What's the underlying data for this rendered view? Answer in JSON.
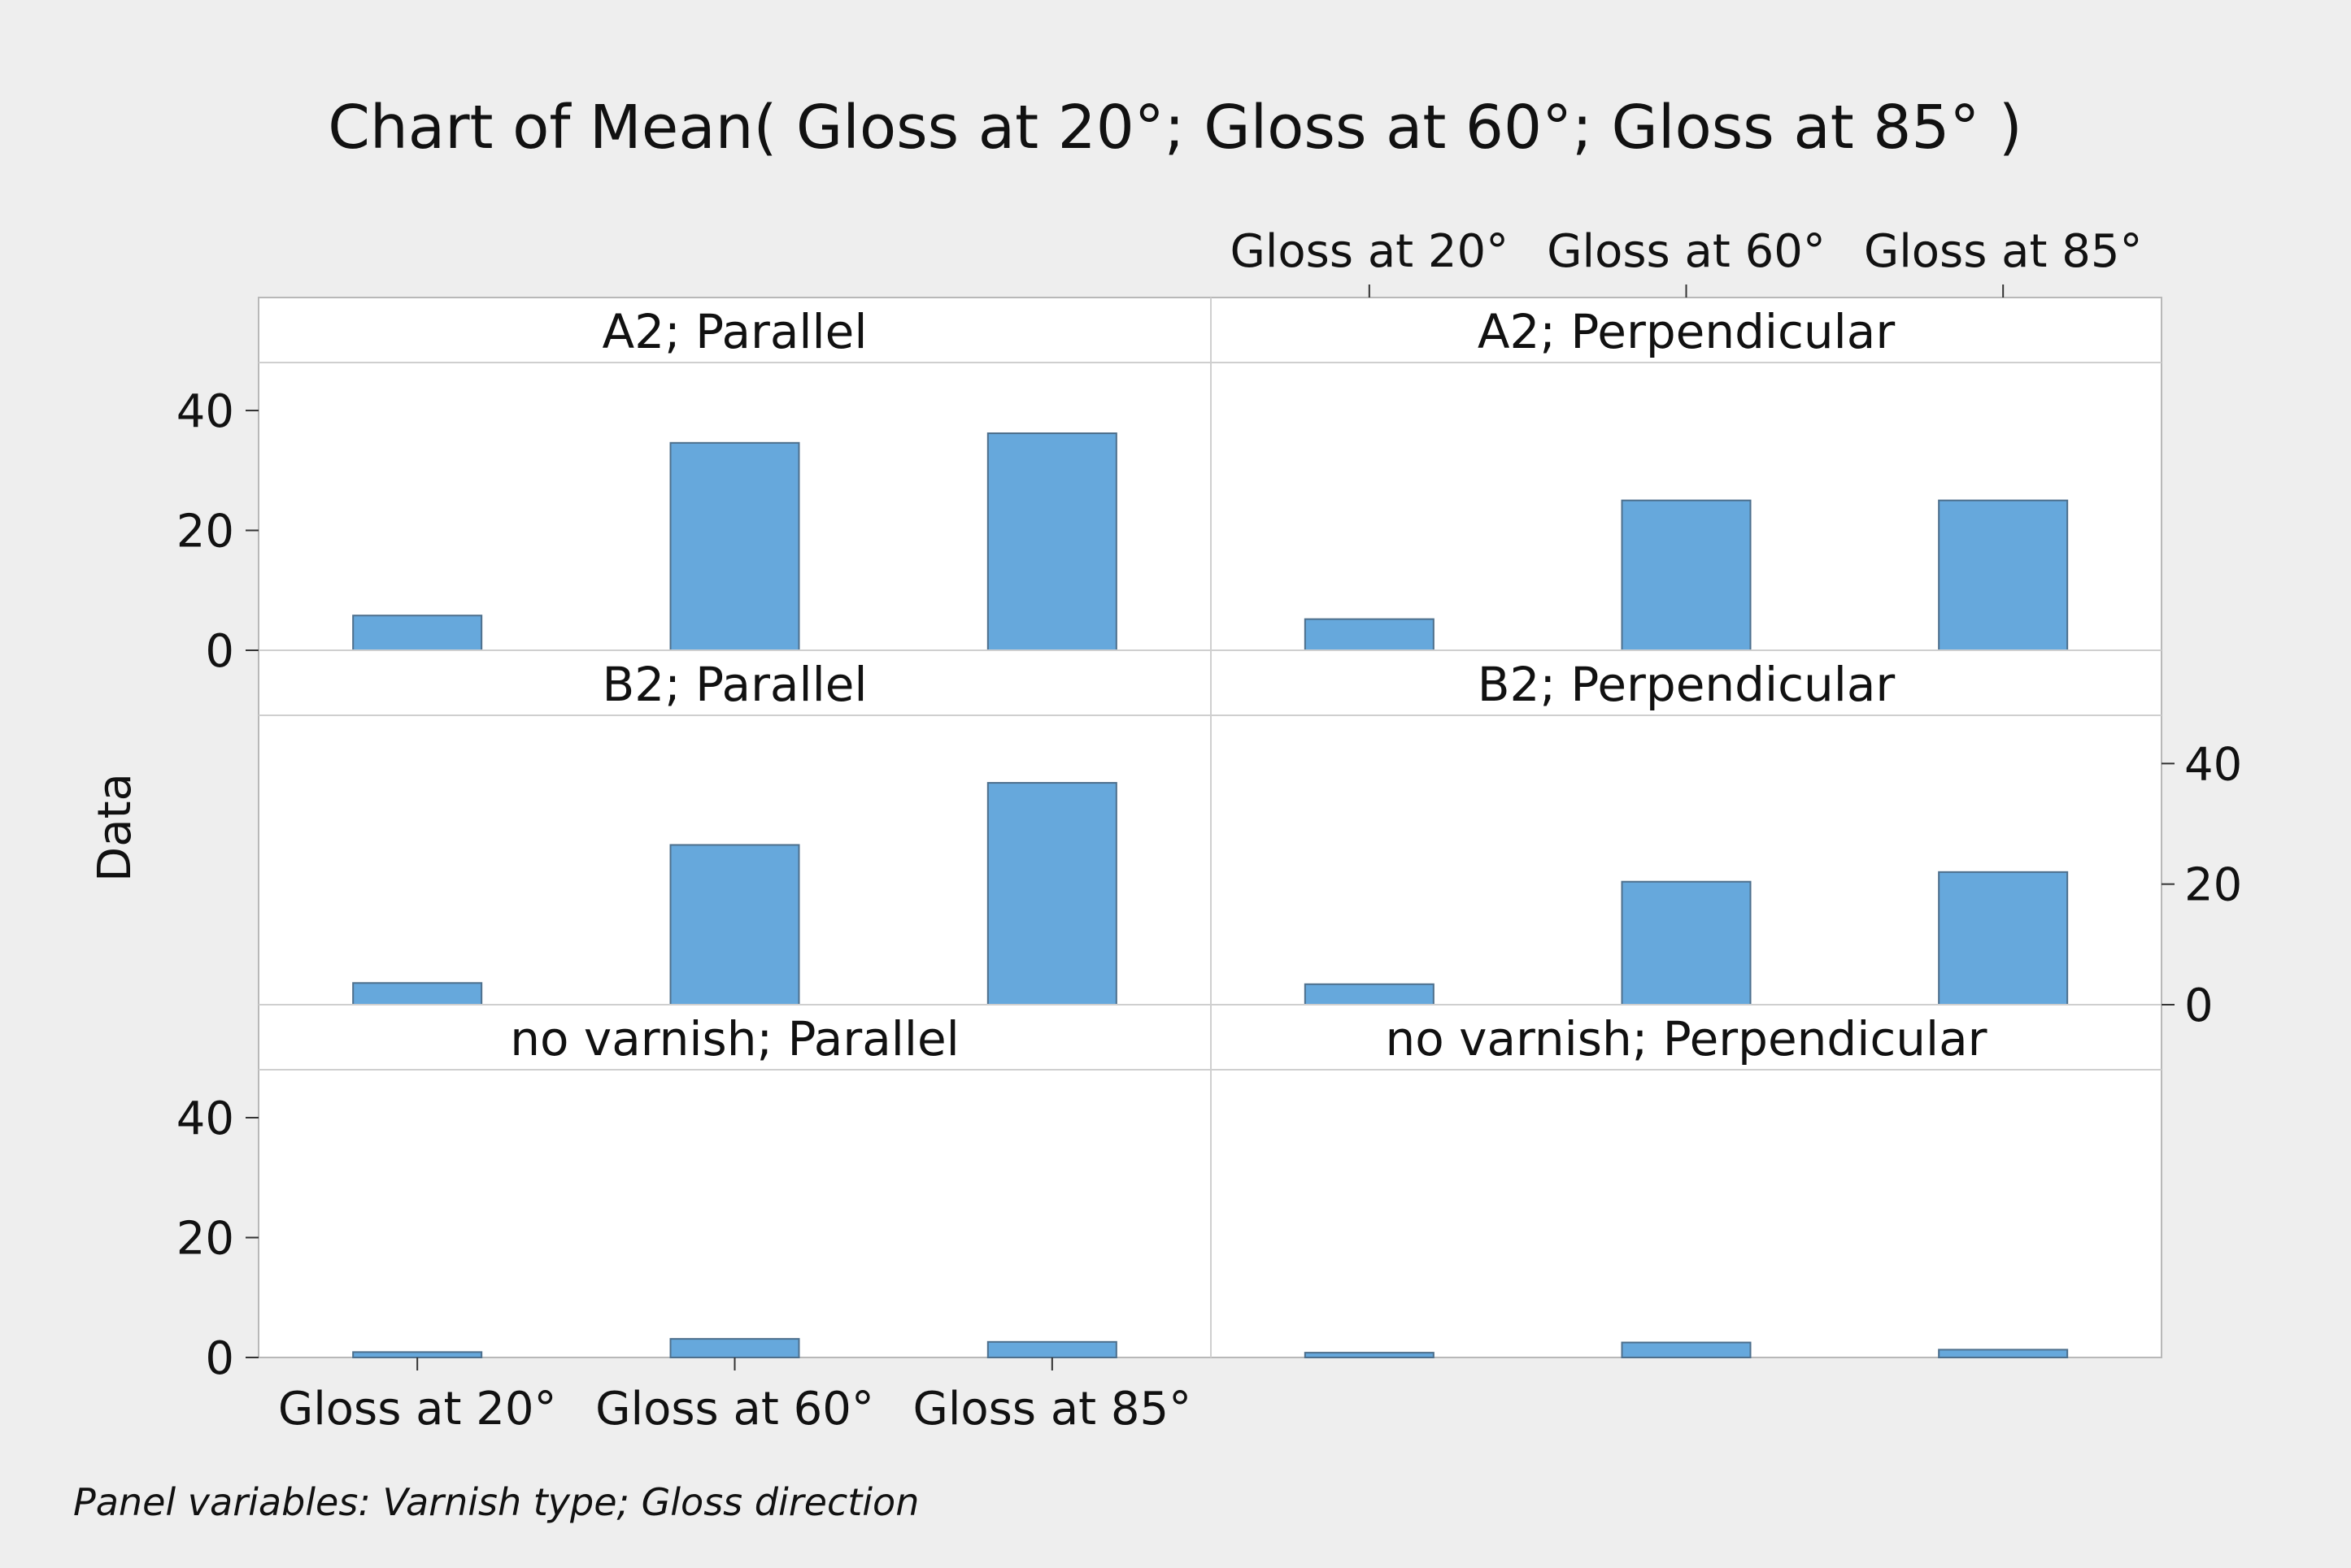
{
  "chart_data": {
    "type": "bar",
    "title": "Chart of Mean( Gloss at 20°; Gloss at 60°; Gloss at 85° )",
    "ylabel": "Data",
    "xlabel": "",
    "ylim": [
      0,
      48
    ],
    "y_ticks": [
      "0",
      "20",
      "40"
    ],
    "categories": [
      "Gloss at 20°",
      "Gloss at 60°",
      "Gloss at 85°"
    ],
    "footnote": "Panel variables: Varnish type; Gloss direction",
    "colors": {
      "bar": "#66a8dc",
      "bar_edge": "#4d6f8c",
      "background": "#eeeeee",
      "panel": "#ffffff",
      "grid": "#cfcfcf"
    },
    "panels": [
      {
        "label": "A2; Parallel",
        "values": [
          5.8,
          34.6,
          36.2
        ]
      },
      {
        "label": "A2; Perpendicular",
        "values": [
          5.2,
          25.0,
          25.0
        ]
      },
      {
        "label": "B2; Parallel",
        "values": [
          3.6,
          26.5,
          36.8
        ]
      },
      {
        "label": "B2; Perpendicular",
        "values": [
          3.4,
          20.4,
          22.0
        ]
      },
      {
        "label": "no varnish; Parallel",
        "values": [
          0.9,
          3.1,
          2.6
        ]
      },
      {
        "label": "no varnish; Perpendicular",
        "values": [
          0.8,
          2.5,
          1.3
        ]
      }
    ]
  }
}
